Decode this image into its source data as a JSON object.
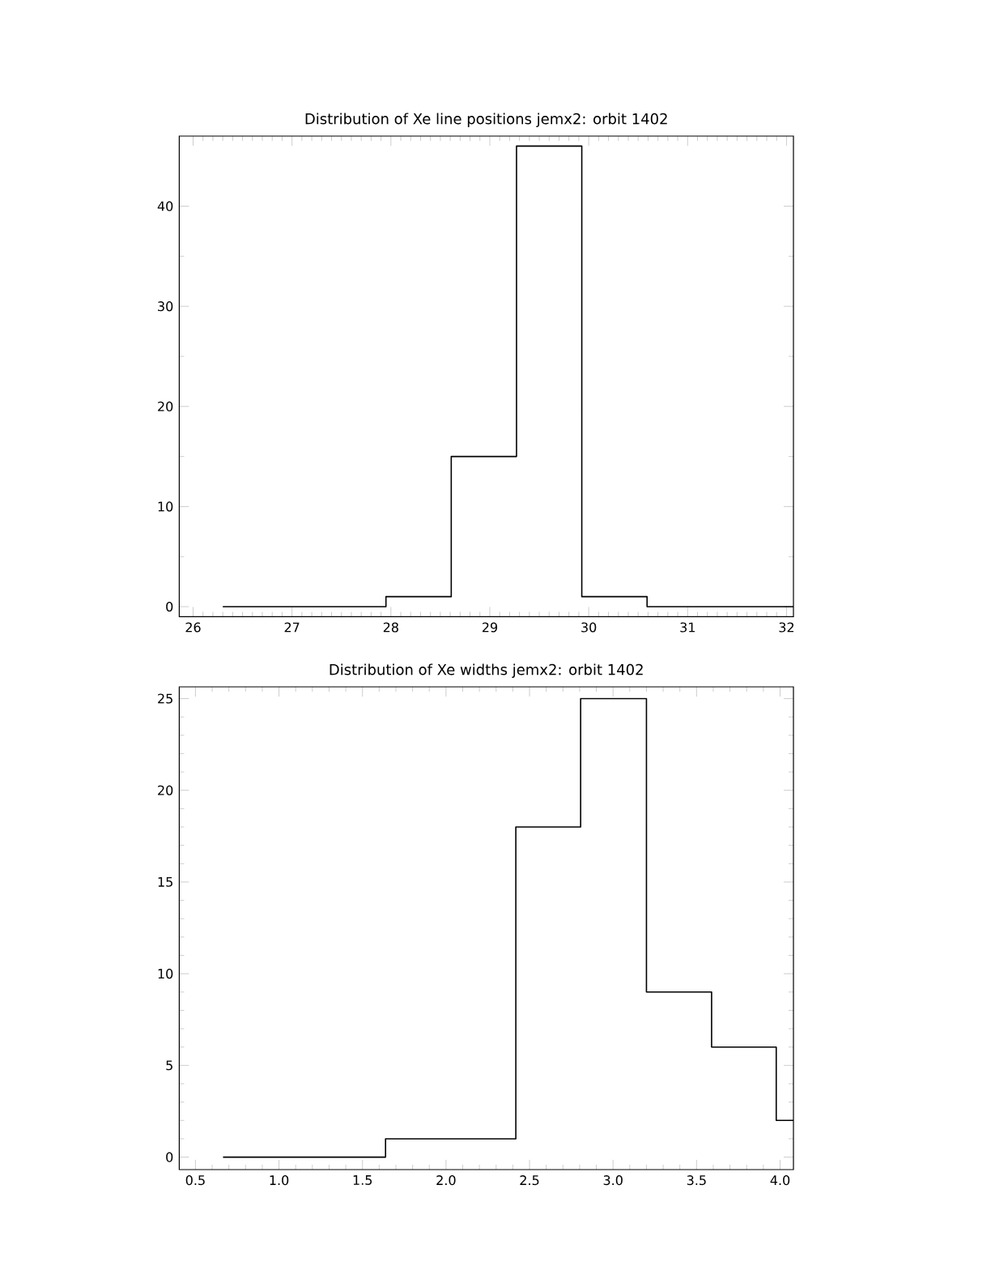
{
  "chart_data": [
    {
      "type": "histogram",
      "title": "Distribution of Xe line positions jemx2: orbit 1402",
      "color": "#000000",
      "bins": [
        26.3,
        27.95,
        28.61,
        29.27,
        29.93,
        30.59,
        32.07
      ],
      "values": [
        0,
        1,
        15,
        46,
        1,
        0
      ],
      "xlim": [
        25.86,
        32.07
      ],
      "ylim": [
        -1,
        47
      ],
      "xticks": [
        26,
        27,
        28,
        29,
        30,
        31,
        32
      ],
      "yticks": [
        0,
        10,
        20,
        30,
        40
      ]
    },
    {
      "type": "histogram",
      "title": "Distribution of Xe widths jemx2: orbit 1402",
      "color": "#000000",
      "bins": [
        0.665,
        1.638,
        2.418,
        2.806,
        3.2,
        3.59,
        3.977,
        4.08
      ],
      "values": [
        0,
        1,
        18,
        25,
        9,
        6,
        2
      ],
      "xlim": [
        0.403,
        4.08
      ],
      "ylim": [
        -0.68,
        25.64
      ],
      "xticks": [
        0.5,
        {
          "value": 1.0,
          "label": "1.0"
        },
        1.5,
        {
          "value": 2.0,
          "label": "2.0"
        },
        2.5,
        {
          "value": 3.0,
          "label": "3.0"
        },
        3.5,
        {
          "value": 4.0,
          "label": "4.0"
        }
      ],
      "yticks": [
        0,
        5,
        10,
        15,
        20,
        25
      ]
    }
  ]
}
